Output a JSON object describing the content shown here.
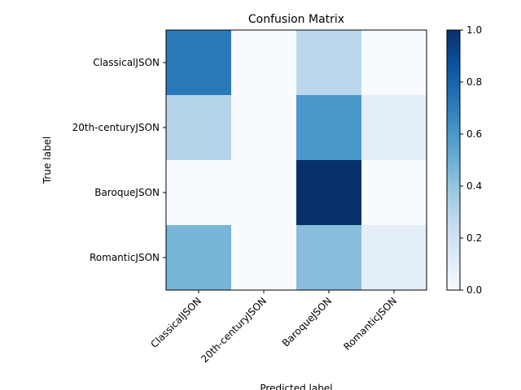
{
  "chart_data": {
    "type": "heatmap",
    "title": "Confusion Matrix",
    "xlabel": "Predicted label",
    "ylabel": "True label",
    "x_categories": [
      "ClassicalJSON",
      "20th-centuryJSON",
      "BaroqueJSON",
      "RomanticJSON"
    ],
    "y_categories": [
      "ClassicalJSON",
      "20th-centuryJSON",
      "BaroqueJSON",
      "RomanticJSON"
    ],
    "values": [
      [
        0.72,
        0.0,
        0.28,
        0.0
      ],
      [
        0.3,
        0.0,
        0.6,
        0.1
      ],
      [
        0.0,
        0.0,
        1.0,
        0.0
      ],
      [
        0.47,
        0.0,
        0.43,
        0.1
      ]
    ],
    "colormap": "Blues",
    "colorbar": {
      "range": [
        0,
        1
      ],
      "ticks": [
        "0.0",
        "0.2",
        "0.4",
        "0.6",
        "0.8",
        "1.0"
      ]
    },
    "grid": false
  }
}
